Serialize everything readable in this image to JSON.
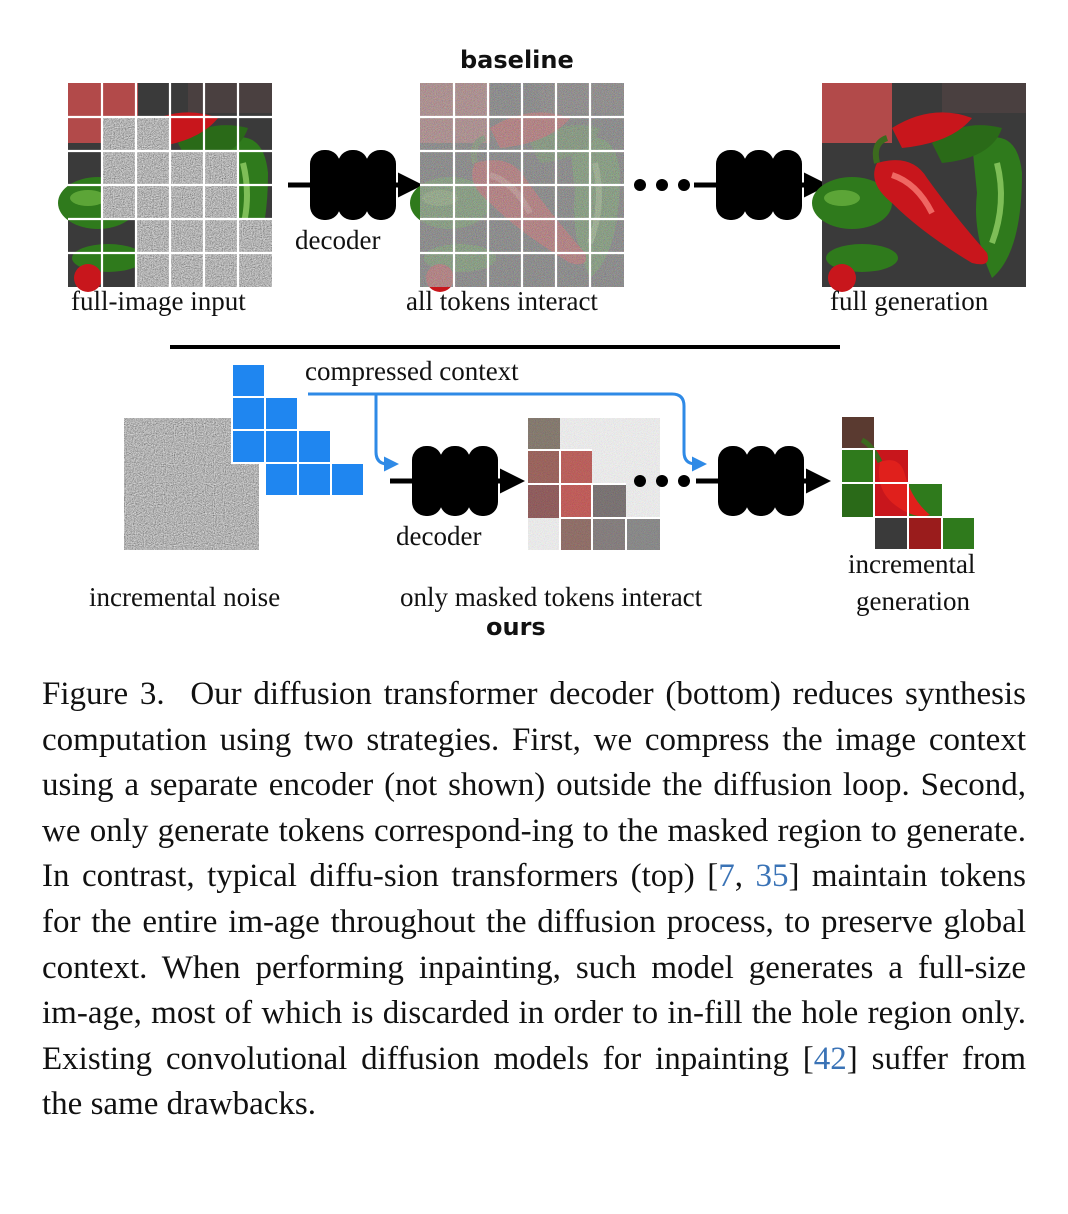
{
  "figure": {
    "baseline_title": "baseline",
    "ours_title": "ours",
    "top": {
      "input_label": "full-image input",
      "decoder_label": "decoder",
      "middle_label": "all tokens interact",
      "output_label": "full generation"
    },
    "bottom": {
      "context_label": "compressed context",
      "noise_label": "incremental noise",
      "decoder_label": "decoder",
      "middle_label": "only masked tokens interact",
      "output_label_line1": "incremental",
      "output_label_line2": "generation"
    }
  },
  "caption": {
    "figure_label": "Figure 3.",
    "part1": "Our diffusion transformer decoder (bottom) reduces synthesis computation using two strategies.  First, we compress the image context using a separate encoder (not shown) outside the diffusion loop.  Second, we only generate tokens correspond-ing to the masked region to generate.  In contrast, typical diffu-sion transformers (top)  [",
    "ref1": "7",
    "sep1": ", ",
    "ref2": "35",
    "part2": "] maintain tokens for the entire im-age throughout the diffusion process, to preserve global context. When performing inpainting, such model generates a full-size im-age, most of which is discarded in order to in-fill the hole region only.  Existing convolutional diffusion models for inpainting [",
    "ref3": "42",
    "part3": "] suffer from the same drawbacks."
  },
  "colors": {
    "accent_blue": "#1f86f0",
    "arrow_blue": "#2f8ae6",
    "pepper_red": "#c8161c",
    "pepper_green": "#2f7a1c",
    "noise_gray": "#6f6f6f",
    "decoder_black": "#000000",
    "ref_blue": "#3a73b6"
  }
}
